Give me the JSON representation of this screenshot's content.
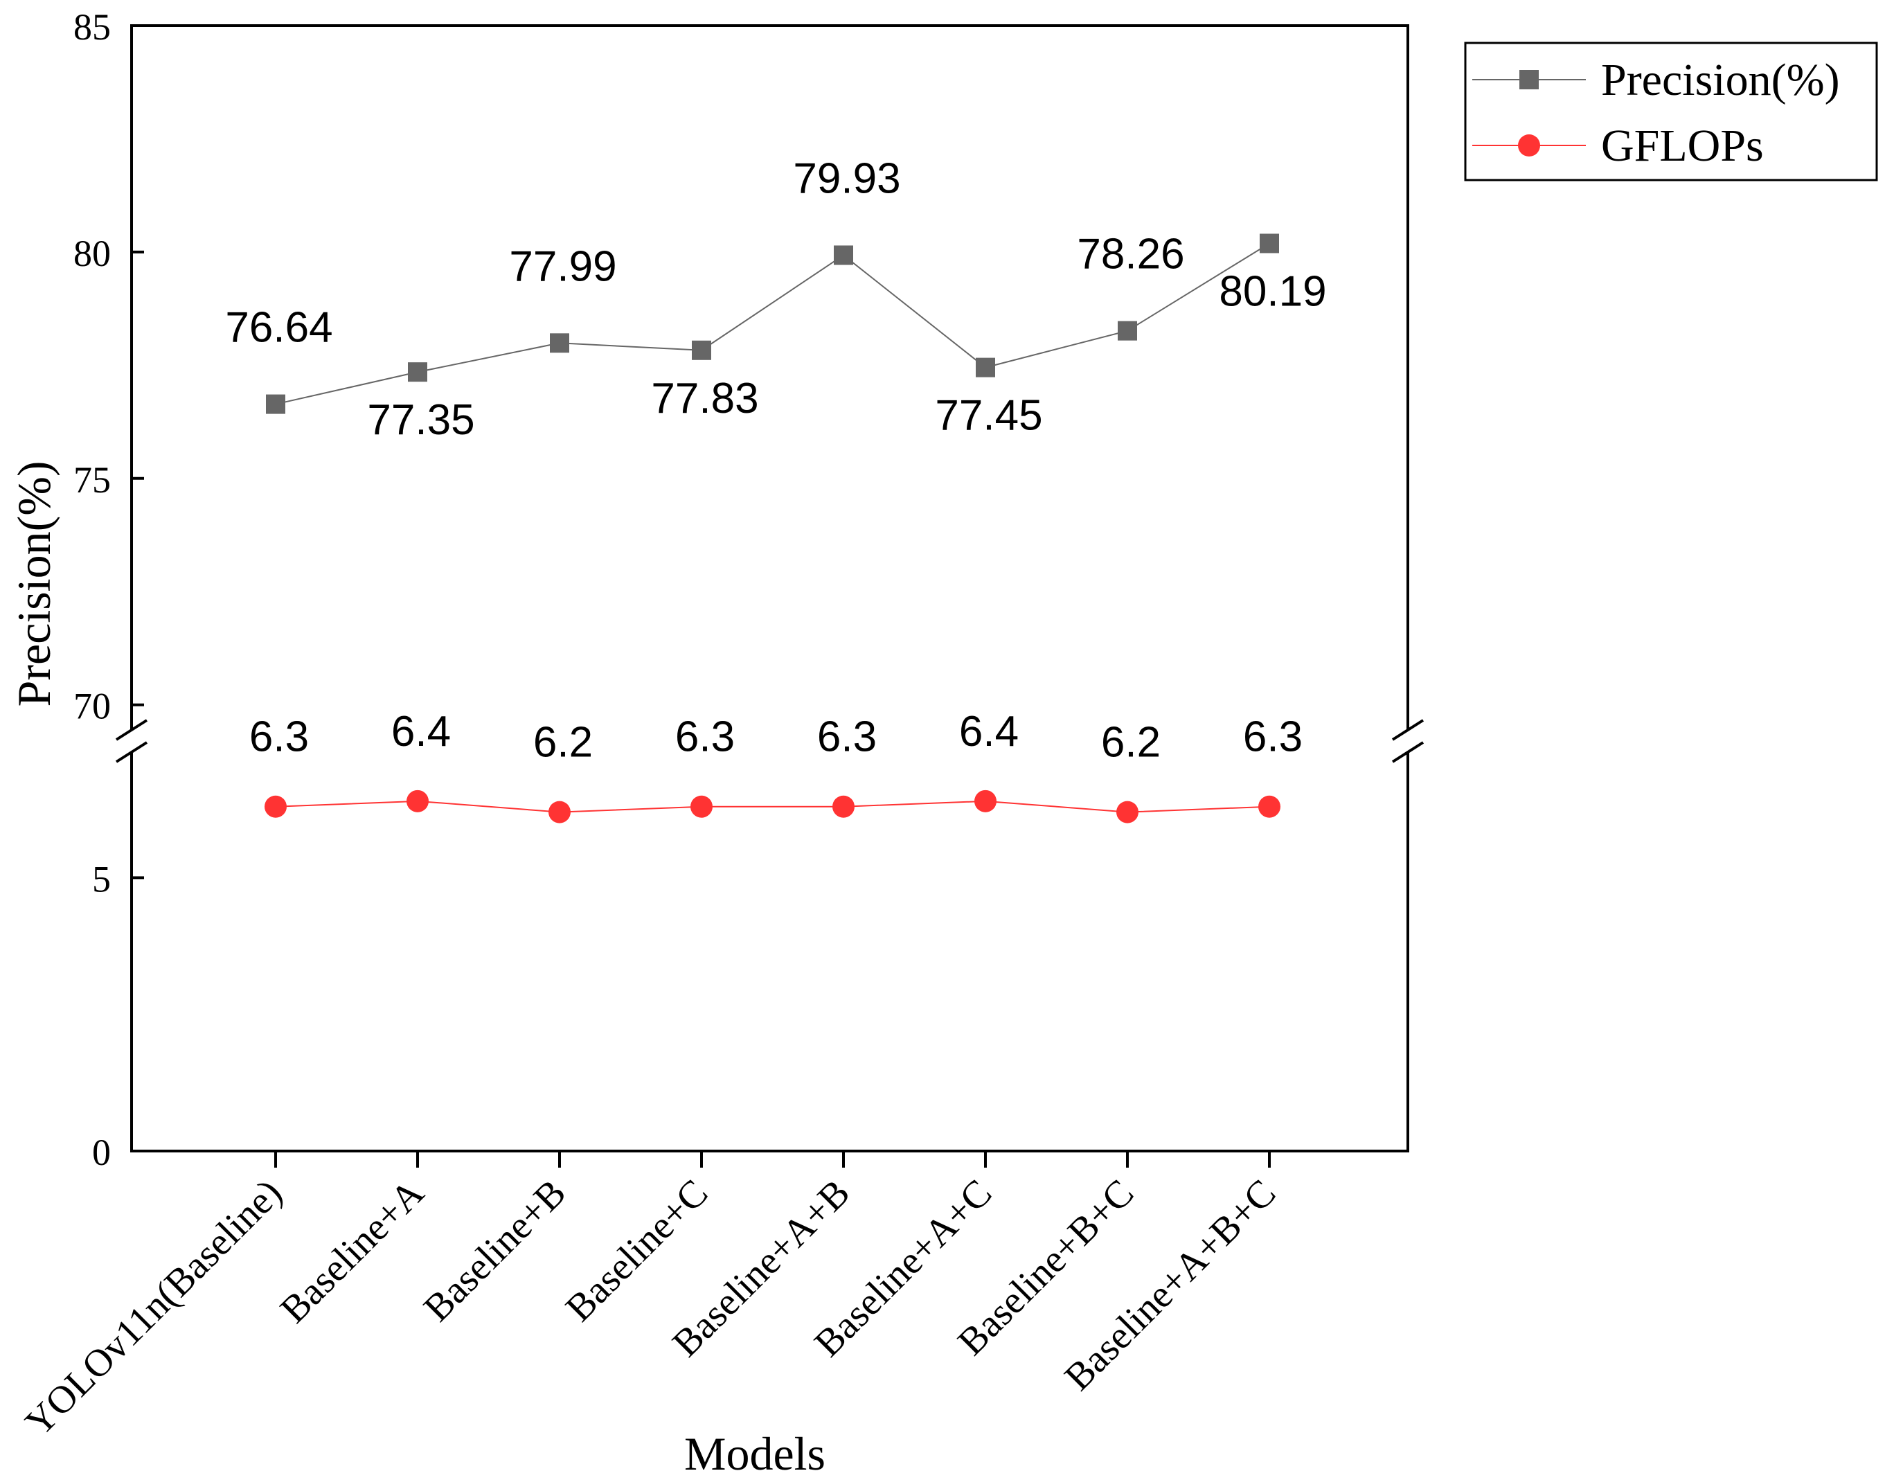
{
  "chart_data": {
    "type": "line",
    "xlabel": "Models",
    "ylabel": "Precision(%)",
    "categories": [
      "YOLOv11n(Baseline)",
      "Baseline+A",
      "Baseline+B",
      "Baseline+C",
      "Baseline+A+B",
      "Baseline+A+C",
      "Baseline+B+C",
      "Baseline+A+B+C"
    ],
    "series": [
      {
        "name": "Precision(%)",
        "values": [
          76.64,
          77.35,
          77.99,
          77.83,
          79.93,
          77.45,
          78.26,
          80.19
        ],
        "labels": [
          "76.64",
          "77.35",
          "77.99",
          "77.83",
          "79.93",
          "77.45",
          "78.26",
          "80.19"
        ],
        "label_side": [
          "above",
          "below",
          "above",
          "below",
          "above",
          "below",
          "above",
          "below"
        ],
        "color": "#666666",
        "marker": "square"
      },
      {
        "name": "GFLOPs",
        "values": [
          6.3,
          6.4,
          6.2,
          6.3,
          6.3,
          6.4,
          6.2,
          6.3
        ],
        "labels": [
          "6.3",
          "6.4",
          "6.2",
          "6.3",
          "6.3",
          "6.4",
          "6.2",
          "6.3"
        ],
        "label_side": [
          "above",
          "above",
          "above",
          "above",
          "above",
          "above",
          "above",
          "above"
        ],
        "color": "#ff3333",
        "marker": "circle"
      }
    ],
    "y_segments": [
      {
        "range": [
          0,
          7.5
        ],
        "ticks": [
          0,
          5
        ],
        "tick_labels": [
          "0",
          "5"
        ]
      },
      {
        "range": [
          69.2,
          85
        ],
        "ticks": [
          70,
          75,
          80,
          85
        ],
        "tick_labels": [
          "70",
          "75",
          "80",
          "85"
        ]
      }
    ],
    "axis_break": true,
    "grid": false,
    "legend": {
      "placement": "top-right, outside plot"
    }
  }
}
